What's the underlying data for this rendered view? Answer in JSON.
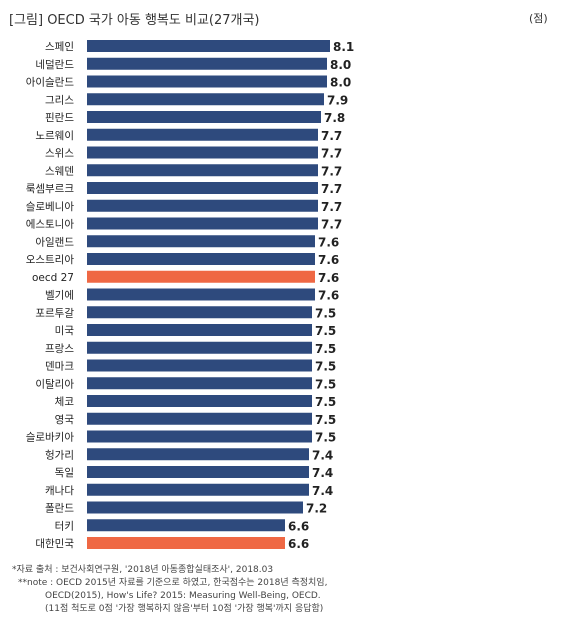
{
  "title": "[그림] OECD 국가 아동 행복도 비교(27개국)",
  "unit_label": "(점)",
  "notes": [
    "*자료 출처 : 보건사회연구원, '2018년 아동종합실태조사', 2018.03",
    "**note : OECD 2015년 자료를 기준으로 하였고, 한국점수는 2018년  측정치임,",
    "OECD(2015), How's Life? 2015: Measuring Well-Being, OECD.",
    "(11점 척도로 0점 '가장 행복하지 않음'부터 10점 '가장 행복'까지 응답함)"
  ],
  "colors": {
    "default_bar": "#2e4a7d",
    "highlight_bar": "#ef6844",
    "value_text": "#222222",
    "label_text": "#222222"
  },
  "chart_data": {
    "type": "bar",
    "orientation": "horizontal",
    "title": "[그림] OECD 국가 아동 행복도 비교(27개국)",
    "unit": "(점)",
    "categories": [
      "스페인",
      "네덜란드",
      "아이슬란드",
      "그리스",
      "핀란드",
      "노르웨이",
      "스위스",
      "스웨덴",
      "룩셈부르크",
      "슬로베니아",
      "에스토니아",
      "아일랜드",
      "오스트리아",
      "oecd 27",
      "벨기에",
      "포르투갈",
      "미국",
      "프랑스",
      "덴마크",
      "이탈리아",
      "체코",
      "영국",
      "슬로바키아",
      "헝가리",
      "독일",
      "캐나다",
      "폴란드",
      "터키",
      "대한민국"
    ],
    "values": [
      8.1,
      8.0,
      8.0,
      7.9,
      7.8,
      7.7,
      7.7,
      7.7,
      7.7,
      7.7,
      7.7,
      7.6,
      7.6,
      7.6,
      7.6,
      7.5,
      7.5,
      7.5,
      7.5,
      7.5,
      7.5,
      7.5,
      7.5,
      7.4,
      7.4,
      7.4,
      7.2,
      6.6,
      6.6
    ],
    "value_labels": [
      "8.1",
      "8.0",
      "8.0",
      "7.9",
      "7.8",
      "7.7",
      "7.7",
      "7.7",
      "7.7",
      "7.7",
      "7.7",
      "7.6",
      "7.6",
      "7.6",
      "7.6",
      "7.5",
      "7.5",
      "7.5",
      "7.5",
      "7.5",
      "7.5",
      "7.5",
      "7.5",
      "7.4",
      "7.4",
      "7.4",
      "7.2",
      "6.6",
      "6.6"
    ],
    "highlighted": [
      "oecd 27",
      "대한민국"
    ],
    "grid": false,
    "legend": "none"
  }
}
